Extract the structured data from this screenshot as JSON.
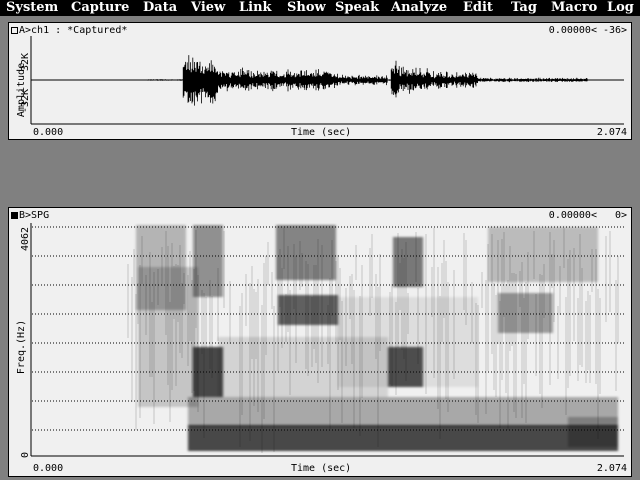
{
  "menu": [
    "System",
    "Capture",
    "Data",
    "View",
    "Link",
    "Show",
    "Speak",
    "Analyze",
    "Edit",
    "Tag",
    "Macro",
    "Log"
  ],
  "waveform": {
    "title": "A>ch1 : *Captured*",
    "cursor_time": "0.00000<",
    "cursor_value": "-36>",
    "y_axis_label": "Amplitude",
    "y_max": "32K",
    "y_min": "-32K",
    "x_axis_label": "Time (sec)",
    "x_start": "0.000",
    "x_end": "2.074"
  },
  "spectrogram": {
    "title": "B>SPG",
    "cursor_time": "0.00000<",
    "cursor_value": "0>",
    "y_axis_label": "Freq.(Hz)",
    "y_max": "4062",
    "y_min": "0",
    "x_axis_label": "Time (sec)",
    "x_start": "0.000",
    "x_end": "2.074"
  },
  "colors": {
    "menubar": "#000000",
    "panel": "#f0f0f0",
    "desktop": "#808080"
  },
  "icons": [
    "panel-a-square-icon",
    "panel-b-square-icon"
  ]
}
